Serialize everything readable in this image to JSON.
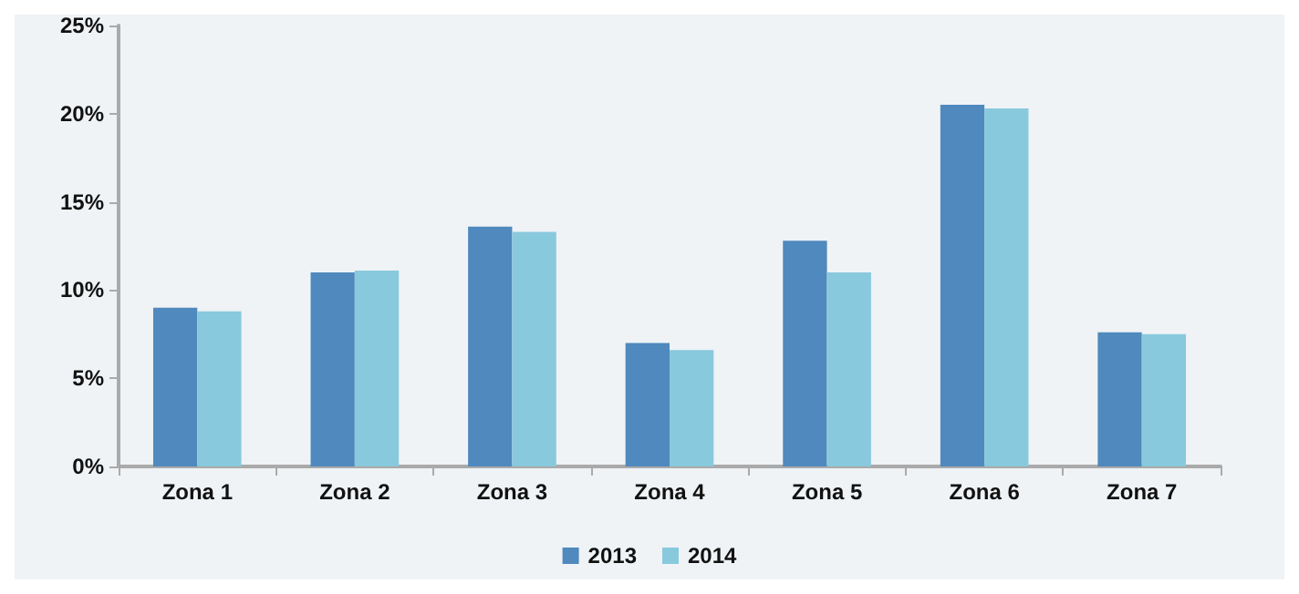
{
  "chart_data": {
    "type": "bar",
    "categories": [
      "Zona 1",
      "Zona 2",
      "Zona 3",
      "Zona 4",
      "Zona 5",
      "Zona 6",
      "Zona 7"
    ],
    "series": [
      {
        "name": "2013",
        "color": "#4f89bd",
        "values": [
          9.0,
          11.0,
          13.6,
          7.0,
          12.8,
          20.5,
          7.6
        ]
      },
      {
        "name": "2014",
        "color": "#89c9dd",
        "values": [
          8.8,
          11.1,
          13.3,
          6.6,
          11.0,
          20.3,
          7.5
        ]
      }
    ],
    "ylim": [
      0,
      25
    ],
    "yticks": [
      {
        "value": 0,
        "label": "0%"
      },
      {
        "value": 5,
        "label": "5%"
      },
      {
        "value": 10,
        "label": "10%"
      },
      {
        "value": 15,
        "label": "15%"
      },
      {
        "value": 20,
        "label": "20%"
      },
      {
        "value": 25,
        "label": "25%"
      }
    ],
    "grid": false,
    "legend": "bottom"
  }
}
